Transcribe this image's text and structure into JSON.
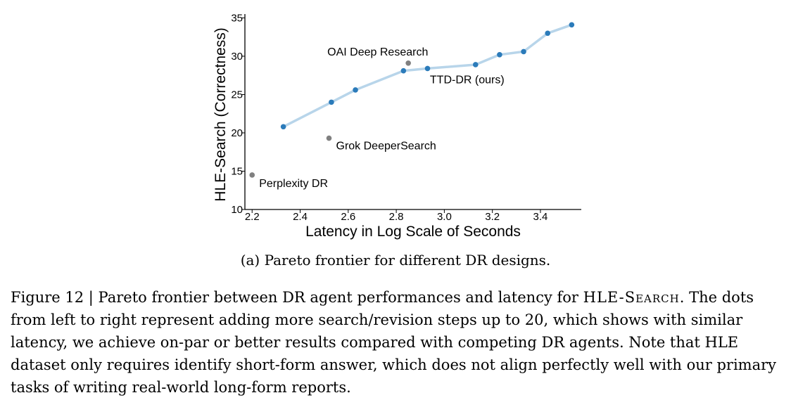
{
  "chart_data": {
    "type": "scatter",
    "xlabel": "Latency in Log Scale of Seconds",
    "ylabel": "HLE-Search (Correctness)",
    "xlim": [
      2.17,
      3.57
    ],
    "ylim": [
      10,
      35.5
    ],
    "xticks": [
      2.2,
      2.4,
      2.6,
      2.8,
      3.0,
      3.2,
      3.4
    ],
    "xtick_labels": [
      "2.2",
      "2.4",
      "2.6",
      "2.8",
      "3.0",
      "3.2",
      "3.4"
    ],
    "yticks": [
      10,
      15,
      20,
      25,
      30,
      35
    ],
    "ytick_labels": [
      "10",
      "15",
      "20",
      "25",
      "30",
      "35"
    ],
    "grid": false,
    "series": [
      {
        "name": "TTD-DR (ours)",
        "color": "#2b7bba",
        "line_color": "#b8d5ea",
        "x": [
          2.33,
          2.53,
          2.63,
          2.83,
          2.93,
          3.13,
          3.23,
          3.33,
          3.43,
          3.53
        ],
        "y": [
          20.8,
          24.0,
          25.6,
          28.1,
          28.4,
          28.9,
          30.2,
          30.6,
          33.0,
          34.1
        ]
      }
    ],
    "baselines": [
      {
        "name": "OAI Deep Research",
        "x": 2.85,
        "y": 29.1,
        "color": "#808080"
      },
      {
        "name": "Grok DeeperSearch",
        "x": 2.52,
        "y": 19.3,
        "color": "#808080"
      },
      {
        "name": "Perplexity DR",
        "x": 2.2,
        "y": 14.5,
        "color": "#808080"
      }
    ]
  },
  "subcaption": "(a) Pareto frontier for different DR designs.",
  "caption": {
    "prefix": "Figure 12 | Pareto frontier between DR agent performances and latency for ",
    "dataset": "HLE-Search",
    "suffix": ". The dots from left to right represent adding more search/revision steps up to 20, which shows with similar latency, we achieve on-par or better results compared with competing DR agents. Note that HLE dataset only requires identify short-form answer, which does not align perfectly well with our primary tasks of writing real-world long-form reports."
  }
}
